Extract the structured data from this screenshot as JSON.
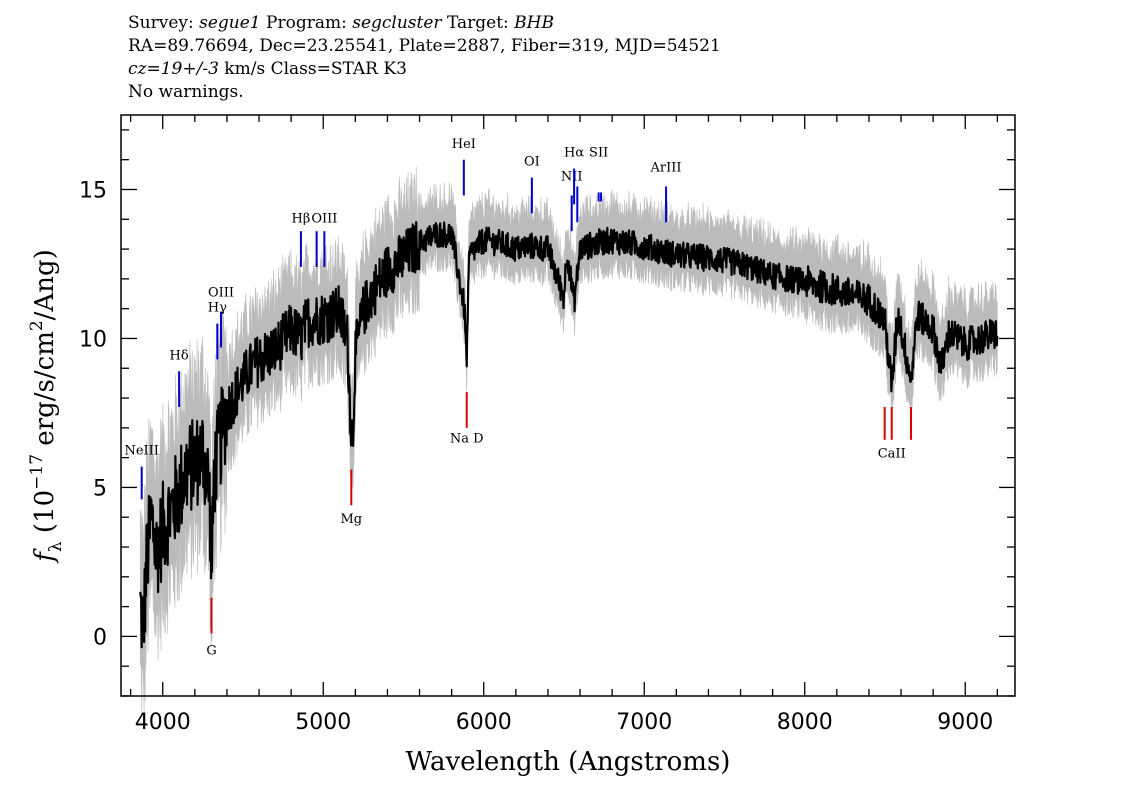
{
  "header": {
    "line1": [
      {
        "text": "Survey: ",
        "italic": false
      },
      {
        "text": "segue1",
        "italic": true
      },
      {
        "text": " Program: ",
        "italic": false
      },
      {
        "text": "segcluster",
        "italic": true
      },
      {
        "text": " Target: ",
        "italic": false
      },
      {
        "text": "BHB",
        "italic": true
      }
    ],
    "line2": "RA=89.76694, Dec=23.25541, Plate=2887, Fiber=319, MJD=54521",
    "line3": [
      {
        "text": "cz=19+/-3",
        "italic": true
      },
      {
        "text": " km/s Class=STAR K3",
        "italic": false
      }
    ],
    "line4": "No warnings."
  },
  "chart_data": {
    "type": "line",
    "xlabel": "Wavelength (Angstroms)",
    "ylabel_parts": {
      "f": "f",
      "sub": "λ",
      "pre": " (10",
      "exp": "−17",
      "mid": " erg/s/cm",
      "exp2": "2",
      "post": "/Ang)"
    },
    "xlim": [
      3740,
      9310
    ],
    "ylim": [
      -2,
      17.5
    ],
    "xticks": [
      4000,
      5000,
      6000,
      7000,
      8000,
      9000
    ],
    "yticks": [
      0,
      5,
      10,
      15
    ],
    "colors": {
      "spectrum": "#000000",
      "error_band": "#bbbbbb",
      "emission": "#0000cc",
      "absorption": "#dd0000"
    },
    "spectrum_knots": [
      [
        3860,
        1.0
      ],
      [
        3880,
        0.3
      ],
      [
        3900,
        2.5
      ],
      [
        3930,
        4.0
      ],
      [
        3960,
        2.8
      ],
      [
        4000,
        3.6
      ],
      [
        4050,
        4.2
      ],
      [
        4100,
        4.8
      ],
      [
        4150,
        5.6
      ],
      [
        4200,
        5.8
      ],
      [
        4250,
        6.2
      ],
      [
        4290,
        5.0
      ],
      [
        4305,
        2.0
      ],
      [
        4320,
        5.5
      ],
      [
        4360,
        6.6
      ],
      [
        4400,
        7.6
      ],
      [
        4450,
        8.1
      ],
      [
        4500,
        8.6
      ],
      [
        4550,
        9.0
      ],
      [
        4600,
        9.3
      ],
      [
        4700,
        9.6
      ],
      [
        4800,
        10.3
      ],
      [
        4861,
        10.0
      ],
      [
        4900,
        10.6
      ],
      [
        5000,
        10.7
      ],
      [
        5100,
        10.9
      ],
      [
        5150,
        10.0
      ],
      [
        5172,
        7.2
      ],
      [
        5184,
        6.6
      ],
      [
        5200,
        9.5
      ],
      [
        5250,
        10.9
      ],
      [
        5300,
        11.5
      ],
      [
        5400,
        12.3
      ],
      [
        5500,
        12.7
      ],
      [
        5600,
        13.2
      ],
      [
        5700,
        13.5
      ],
      [
        5800,
        13.5
      ],
      [
        5880,
        11.0
      ],
      [
        5893,
        9.2
      ],
      [
        5910,
        12.8
      ],
      [
        6000,
        13.3
      ],
      [
        6100,
        13.2
      ],
      [
        6200,
        13.0
      ],
      [
        6300,
        13.1
      ],
      [
        6400,
        13.0
      ],
      [
        6497,
        11.4
      ],
      [
        6520,
        12.9
      ],
      [
        6563,
        11.2
      ],
      [
        6600,
        13.0
      ],
      [
        6700,
        13.2
      ],
      [
        6800,
        13.3
      ],
      [
        7000,
        13.1
      ],
      [
        7200,
        12.8
      ],
      [
        7400,
        12.7
      ],
      [
        7600,
        12.5
      ],
      [
        7800,
        12.1
      ],
      [
        8000,
        11.9
      ],
      [
        8200,
        11.6
      ],
      [
        8400,
        11.3
      ],
      [
        8498,
        10.6
      ],
      [
        8542,
        8.4
      ],
      [
        8580,
        10.9
      ],
      [
        8662,
        8.6
      ],
      [
        8700,
        10.8
      ],
      [
        8800,
        10.3
      ],
      [
        8850,
        9.0
      ],
      [
        8900,
        10.2
      ],
      [
        9000,
        9.8
      ],
      [
        9100,
        10.0
      ],
      [
        9200,
        10.2
      ]
    ],
    "emission_lines": [
      {
        "name": "NeIII",
        "wave": 3869,
        "top": 5.7,
        "bottom": 4.6,
        "label_y": 6.1
      },
      {
        "name": "Hδ",
        "wave": 4102,
        "top": 8.9,
        "bottom": 7.7,
        "label_y": 9.3
      },
      {
        "name": "Hγ",
        "wave": 4340,
        "top": 10.5,
        "bottom": 9.3,
        "label_y": 10.9
      },
      {
        "name": "OIII",
        "wave": 4363,
        "top": 10.9,
        "bottom": 9.7,
        "label_y": 11.4
      },
      {
        "name": "Hβ",
        "wave": 4861,
        "top": 13.6,
        "bottom": 12.4,
        "label_y": 13.9
      },
      {
        "name": "OIII",
        "wave": 4959,
        "top": 13.6,
        "bottom": 12.4,
        "label_y": null
      },
      {
        "name": "OIII",
        "wave": 5007,
        "top": 13.6,
        "bottom": 12.4,
        "label_y": 13.9
      },
      {
        "name": "HeI",
        "wave": 5876,
        "top": 16.0,
        "bottom": 14.8,
        "label_y": 16.4
      },
      {
        "name": "OI",
        "wave": 6300,
        "top": 15.4,
        "bottom": 14.2,
        "label_y": 15.8
      },
      {
        "name": "NII",
        "wave": 6548,
        "top": 14.8,
        "bottom": 13.6,
        "label_y": 15.3
      },
      {
        "name": "Hα",
        "wave": 6563,
        "top": 15.7,
        "bottom": 14.5,
        "label_y": 16.1
      },
      {
        "name": "NII",
        "wave": 6583,
        "top": 15.1,
        "bottom": 13.9,
        "label_y": null
      },
      {
        "name": "SII",
        "wave": 6716,
        "top": 14.9,
        "bottom": 14.6,
        "label_y": 16.1
      },
      {
        "name": "SII",
        "wave": 6731,
        "top": 14.9,
        "bottom": 14.6,
        "label_y": null
      },
      {
        "name": "ArIII",
        "wave": 7136,
        "top": 15.1,
        "bottom": 13.9,
        "label_y": 15.6
      }
    ],
    "absorption_lines": [
      {
        "name": "G",
        "wave": 4304,
        "top": 1.3,
        "bottom": 0.1,
        "label_y": -0.6
      },
      {
        "name": "Mg",
        "wave": 5175,
        "top": 5.6,
        "bottom": 4.4,
        "label_y": 3.8
      },
      {
        "name": "Na D",
        "wave": 5894,
        "top": 8.2,
        "bottom": 7.0,
        "label_y": 6.5
      },
      {
        "name": "CaII",
        "wave": 8498,
        "top": 7.7,
        "bottom": 6.6,
        "label_y": null
      },
      {
        "name": "CaII",
        "wave": 8542,
        "top": 7.7,
        "bottom": 6.6,
        "label_y": 6.0
      },
      {
        "name": "CaII",
        "wave": 8662,
        "top": 7.7,
        "bottom": 6.6,
        "label_y": null
      }
    ]
  }
}
